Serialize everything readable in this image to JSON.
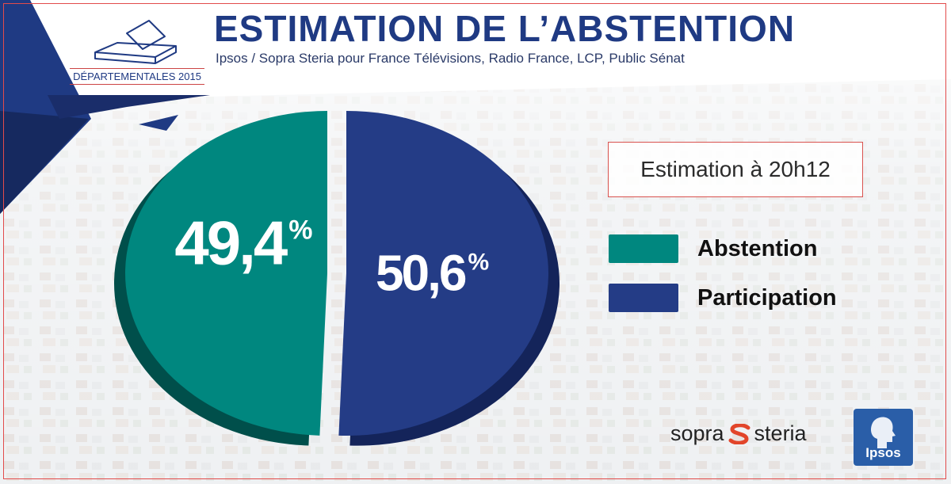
{
  "header": {
    "title": "ESTIMATION DE L’ABSTENTION",
    "subtitle": "Ipsos / Sopra Steria pour France Télévisions, Radio France, LCP, Public Sénat",
    "election": "DÉPARTEMENTALES 2015"
  },
  "estimation_label": "Estimation à 20h12",
  "colors": {
    "abstention": "#00877f",
    "abstention_dark": "#004f4b",
    "participation": "#243c86",
    "participation_dark": "#14245a",
    "brand_blue": "#1f3a83",
    "accent_red": "#d9534f"
  },
  "chart_data": {
    "type": "pie",
    "title": "",
    "slices": [
      {
        "name": "Abstention",
        "value": 49.4,
        "label": "49,4",
        "unit": "%"
      },
      {
        "name": "Participation",
        "value": 50.6,
        "label": "50,6",
        "unit": "%"
      }
    ],
    "legend_position": "right",
    "style": "3d-exploded"
  },
  "logos": {
    "sopra_left": "sopra",
    "sopra_right": "steria",
    "ipsos": "Ipsos"
  }
}
